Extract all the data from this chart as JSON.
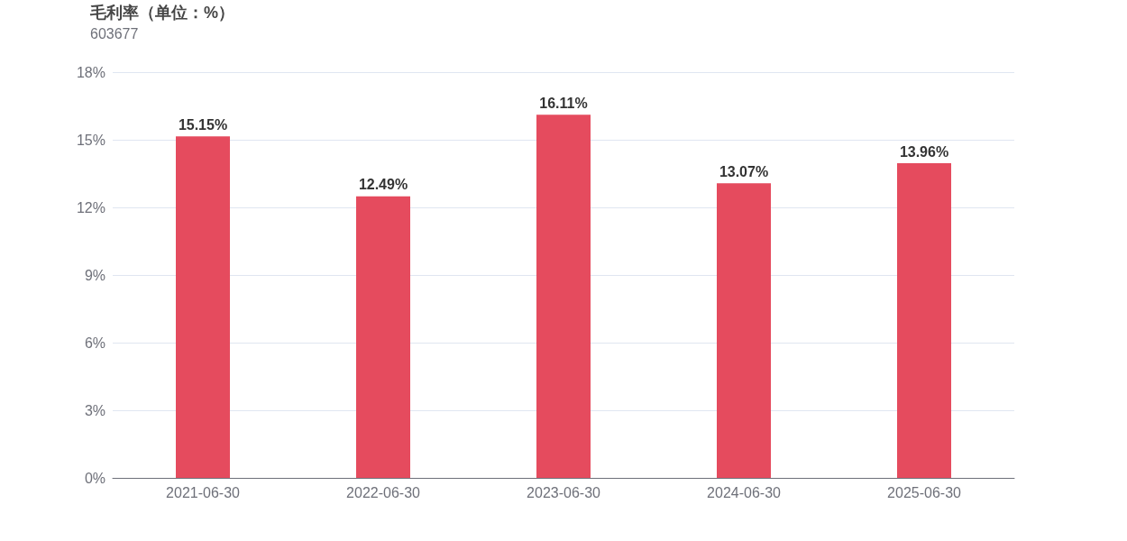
{
  "chart_data": {
    "type": "bar",
    "title": "毛利率（单位：%）",
    "subtitle": "603677",
    "categories": [
      "2021-06-30",
      "2022-06-30",
      "2023-06-30",
      "2024-06-30",
      "2025-06-30"
    ],
    "values": [
      15.15,
      12.49,
      16.11,
      13.07,
      13.96
    ],
    "value_labels": [
      "15.15%",
      "12.49%",
      "16.11%",
      "13.07%",
      "13.96%"
    ],
    "color": "#e54b5e",
    "ylim": [
      0,
      18
    ],
    "yticks": [
      {
        "value": 0,
        "label": "0%"
      },
      {
        "value": 3,
        "label": "3%"
      },
      {
        "value": 6,
        "label": "6%"
      },
      {
        "value": 9,
        "label": "9%"
      },
      {
        "value": 12,
        "label": "12%"
      },
      {
        "value": 15,
        "label": "15%"
      },
      {
        "value": 18,
        "label": "18%"
      }
    ],
    "grid": "y"
  }
}
